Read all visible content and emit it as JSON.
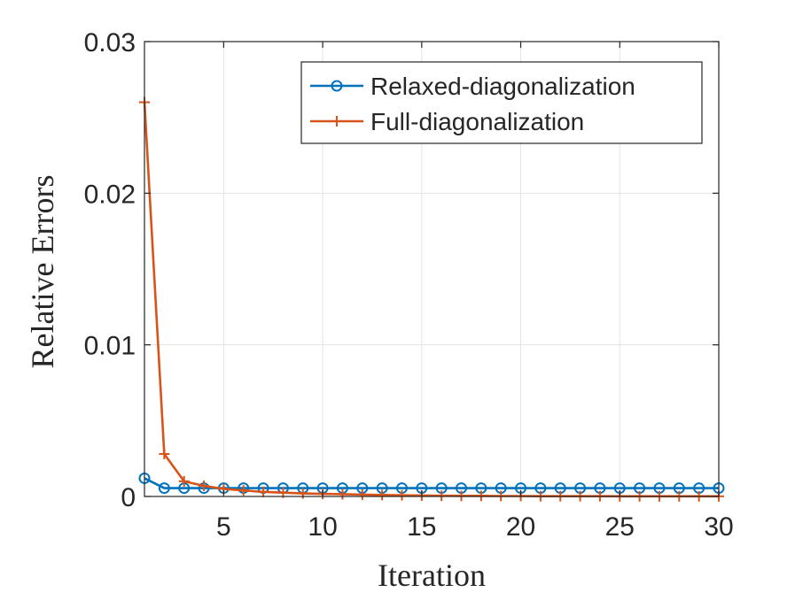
{
  "chart_data": {
    "type": "line",
    "title": "",
    "xlabel": "Iteration",
    "ylabel": "Relative Errors",
    "xlim": [
      1,
      30
    ],
    "ylim": [
      0,
      0.03
    ],
    "xticks": [
      5,
      10,
      15,
      20,
      25,
      30
    ],
    "xtick_labels": [
      "5",
      "10",
      "15",
      "20",
      "25",
      "30"
    ],
    "yticks": [
      0,
      0.01,
      0.02,
      0.03
    ],
    "ytick_labels": [
      "0",
      "0.01",
      "0.02",
      "0.03"
    ],
    "grid": true,
    "legend_position": "top-right",
    "x": [
      1,
      2,
      3,
      4,
      5,
      6,
      7,
      8,
      9,
      10,
      11,
      12,
      13,
      14,
      15,
      16,
      17,
      18,
      19,
      20,
      21,
      22,
      23,
      24,
      25,
      26,
      27,
      28,
      29,
      30
    ],
    "series": [
      {
        "name": "Relaxed-diagonalization",
        "marker": "circle",
        "color": "#0072BD",
        "values": [
          0.0012,
          0.00055,
          0.00055,
          0.00055,
          0.00055,
          0.00055,
          0.00055,
          0.00055,
          0.00055,
          0.00055,
          0.00055,
          0.00055,
          0.00055,
          0.00055,
          0.00055,
          0.00055,
          0.00055,
          0.00055,
          0.00055,
          0.00055,
          0.00055,
          0.00055,
          0.00055,
          0.00055,
          0.00055,
          0.00055,
          0.00055,
          0.00055,
          0.00055,
          0.00055
        ]
      },
      {
        "name": "Full-diagonalization",
        "marker": "plus",
        "color": "#D95319",
        "values": [
          0.026,
          0.0028,
          0.001,
          0.0007,
          0.0005,
          0.0004,
          0.0003,
          0.00025,
          0.0002,
          0.00017,
          0.00015,
          0.00012,
          0.0001,
          8e-05,
          6e-05,
          5e-05,
          4e-05,
          4e-05,
          3e-05,
          3e-05,
          2e-05,
          2e-05,
          2e-05,
          2e-05,
          1e-05,
          1e-05,
          1e-05,
          1e-05,
          1e-05,
          1e-05
        ]
      }
    ]
  }
}
